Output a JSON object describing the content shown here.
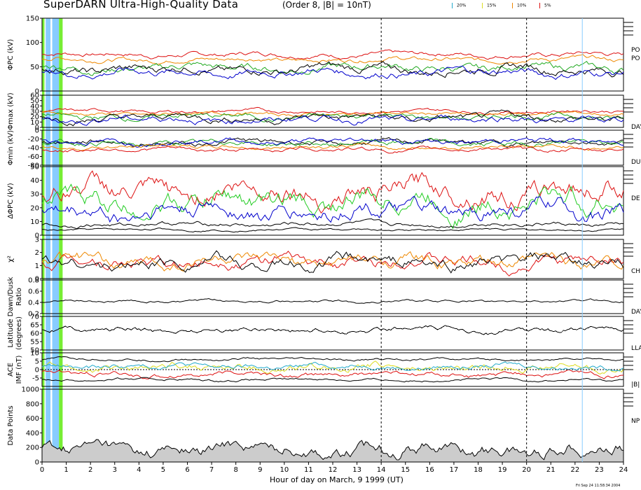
{
  "title": "SuperDARN Ultra-High-Quality Data",
  "subtitle": "(Order 8, |B| = 10nT)",
  "legend": [
    {
      "label": "20%",
      "color": "#22aacc"
    },
    {
      "label": "15%",
      "color": "#dddd22"
    },
    {
      "label": "10%",
      "color": "#ee8800"
    },
    {
      "label": "5%",
      "color": "#dd1111"
    }
  ],
  "xlabel": "Hour of day on March, 9 1999 (UT)",
  "footer": "Fri Sep 24 11:58:34 2004",
  "chart_data": {
    "type": "line",
    "xlim": [
      0,
      24
    ],
    "x_ticks": [
      0,
      1,
      2,
      3,
      4,
      5,
      6,
      7,
      8,
      9,
      10,
      11,
      12,
      13,
      14,
      15,
      16,
      17,
      18,
      19,
      20,
      21,
      22,
      23,
      24
    ],
    "dashed_vlines": [
      14,
      20
    ],
    "solid_vlines": [
      22.3
    ],
    "shaded_bands": [
      {
        "x": [
          0,
          0.1
        ],
        "color": "#77ee33"
      },
      {
        "x": [
          0.15,
          0.35
        ],
        "color": "#88ccff"
      },
      {
        "x": [
          0.42,
          0.7
        ],
        "color": "#88ccff"
      },
      {
        "x": [
          0.7,
          0.85
        ],
        "color": "#77ee33"
      }
    ],
    "panels": [
      {
        "id": "phi-pc",
        "ylabel_main": "ΦPC (kV)",
        "ylabel_extra": "",
        "ylim": [
          0,
          150
        ],
        "y_ticks": [
          0,
          50,
          100,
          150
        ],
        "side_labels": [
          "PO",
          "PO"
        ],
        "series": [
          {
            "color": "#dd1111",
            "base": 75,
            "amp": 6
          },
          {
            "color": "#ee8800",
            "base": 65,
            "amp": 6
          },
          {
            "color": "#22aa22",
            "base": 48,
            "amp": 10
          },
          {
            "color": "#000000",
            "base": 45,
            "amp": 11
          },
          {
            "color": "#0000cc",
            "base": 38,
            "amp": 10
          }
        ]
      },
      {
        "id": "phi-max",
        "ylabel_main": "Φmax (kV)",
        "ylabel_extra": "",
        "ylim": [
          0,
          60
        ],
        "y_ticks": [
          0,
          10,
          20,
          30,
          40,
          50,
          60
        ],
        "side_labels": [
          "DAY"
        ],
        "series": [
          {
            "color": "#dd1111",
            "base": 30,
            "amp": 4
          },
          {
            "color": "#ee8800",
            "base": 25,
            "amp": 4
          },
          {
            "color": "#22aa22",
            "base": 20,
            "amp": 7
          },
          {
            "color": "#000000",
            "base": 18,
            "amp": 8
          },
          {
            "color": "#0000cc",
            "base": 15,
            "amp": 8
          }
        ]
      },
      {
        "id": "phi-min",
        "ylabel_main": "Φmin (kV)",
        "ylabel_extra": "",
        "ylim": [
          -80,
          0
        ],
        "y_ticks": [
          -80,
          -60,
          -40,
          -20,
          0
        ],
        "side_labels": [
          "DU"
        ],
        "series": [
          {
            "color": "#000000",
            "base": -28,
            "amp": 8
          },
          {
            "color": "#22aa22",
            "base": -30,
            "amp": 8
          },
          {
            "color": "#0000cc",
            "base": -25,
            "amp": 8
          },
          {
            "color": "#ee8800",
            "base": -38,
            "amp": 6
          },
          {
            "color": "#dd1111",
            "base": -44,
            "amp": 6
          }
        ]
      },
      {
        "id": "delta-phi",
        "ylabel_main": "ΔΦPC (kV)",
        "ylabel_extra": "",
        "ylim": [
          0,
          50
        ],
        "y_ticks": [
          0,
          10,
          20,
          30,
          40,
          50
        ],
        "side_labels": [
          "DE"
        ],
        "series": [
          {
            "color": "#dd1111",
            "base": 32,
            "amp": 10
          },
          {
            "color": "#22cc22",
            "base": 24,
            "amp": 10
          },
          {
            "color": "#0000cc",
            "base": 17,
            "amp": 8
          },
          {
            "color": "#000000",
            "base": 8,
            "amp": 2
          },
          {
            "color": "#000000",
            "base": 4,
            "amp": 1
          }
        ]
      },
      {
        "id": "chi2",
        "ylabel_main": "χ²",
        "ylabel_extra": "",
        "ylim": [
          0,
          3
        ],
        "y_ticks": [
          0,
          1,
          2,
          3
        ],
        "side_labels": [
          "CH"
        ],
        "series": [
          {
            "color": "#dd1111",
            "base": 1.3,
            "amp": 0.6
          },
          {
            "color": "#ee8800",
            "base": 1.25,
            "amp": 0.6
          },
          {
            "color": "#000000",
            "base": 1.2,
            "amp": 0.6
          }
        ]
      },
      {
        "id": "dawn-dusk",
        "ylabel_main": "Dawn/Dusk",
        "ylabel_extra": "Ratio",
        "ylim": [
          0.2,
          0.8
        ],
        "y_ticks": [
          0.2,
          0.4,
          0.6,
          0.8
        ],
        "side_labels": [
          "DAY"
        ],
        "series": [
          {
            "color": "#000000",
            "base": 0.42,
            "amp": 0.03
          }
        ]
      },
      {
        "id": "latitude",
        "ylabel_main": "Latitude",
        "ylabel_extra": "(degrees)",
        "ylim": [
          50,
          70
        ],
        "y_ticks": [
          50,
          55,
          60,
          65,
          70
        ],
        "side_labels": [
          "LLA"
        ],
        "series": [
          {
            "color": "#000000",
            "base": 62,
            "amp": 2
          }
        ]
      },
      {
        "id": "imf",
        "ylabel_main": "ACE",
        "ylabel_extra": "IMF (nT)",
        "ylim": [
          -10,
          10
        ],
        "y_ticks": [
          -5,
          0,
          5,
          10
        ],
        "side_labels": [
          "|B|"
        ],
        "series": [
          {
            "color": "#000000",
            "base": 6,
            "amp": 1
          },
          {
            "color": "#dd1111",
            "base": -3,
            "amp": 2
          },
          {
            "color": "#dddd22",
            "base": 1,
            "amp": 3
          },
          {
            "color": "#22aacc",
            "base": 2,
            "amp": 2
          },
          {
            "color": "#000000",
            "base": -6,
            "amp": 1
          }
        ]
      },
      {
        "id": "data-points",
        "ylabel_main": "Data Points",
        "ylabel_extra": "",
        "ylim": [
          0,
          1000
        ],
        "y_ticks": [
          0,
          200,
          400,
          600,
          800,
          1000
        ],
        "side_labels": [
          "NP"
        ],
        "series": [
          {
            "color": "#000000",
            "base": 180,
            "amp": 120
          }
        ]
      }
    ]
  }
}
